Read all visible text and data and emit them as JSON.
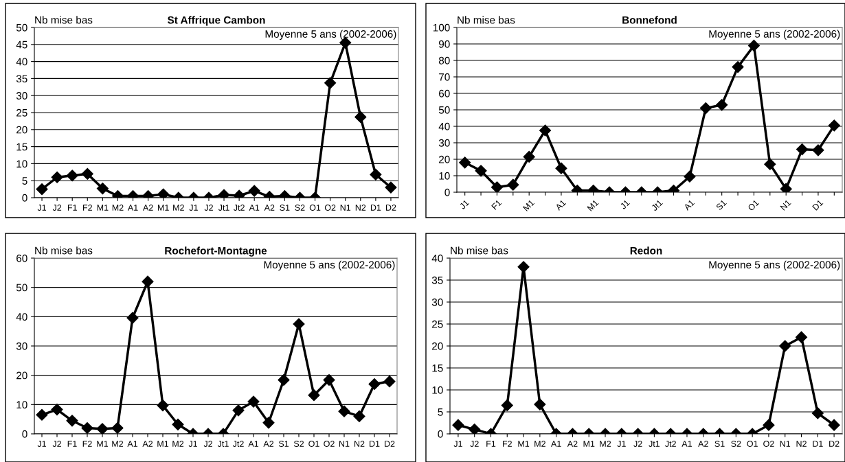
{
  "chart_data": [
    {
      "type": "line",
      "title": "St Affrique Cambon",
      "ylabel": "Nb mise bas",
      "annotations": [
        "Moyenne 5 ans (2002-2006)"
      ],
      "categories": [
        "J1",
        "J2",
        "F1",
        "F2",
        "M1",
        "M2",
        "A1",
        "A2",
        "M1",
        "M2",
        "J1",
        "J2",
        "Jt1",
        "Jt2",
        "A1",
        "A2",
        "S1",
        "S2",
        "O1",
        "O2",
        "N1",
        "N2",
        "D1",
        "D2"
      ],
      "color": "#000000",
      "values": [
        2.5,
        6,
        6.5,
        7,
        2.7,
        0.5,
        0.5,
        0.5,
        1,
        0,
        0,
        0,
        0.8,
        0.6,
        2,
        0.3,
        0.5,
        0,
        0,
        33.7,
        45.5,
        23.7,
        6.8,
        3
      ],
      "ylim": [
        0,
        50
      ],
      "yticks": [
        0,
        5,
        10,
        15,
        20,
        25,
        30,
        35,
        40,
        45,
        50
      ],
      "grid": "y",
      "marker": "diamond",
      "line_style": "solid"
    },
    {
      "type": "line",
      "title": "Bonnefond",
      "ylabel": "Nb mise bas",
      "annotations": [
        "Moyenne 5 ans (2002-2006)"
      ],
      "categories": [
        "J1",
        null,
        "F1",
        null,
        "M1",
        null,
        "A1",
        null,
        "M1",
        null,
        "J1",
        null,
        "Jt1",
        null,
        "A1",
        null,
        "S1",
        null,
        "O1",
        null,
        "N1",
        null,
        "D1",
        null
      ],
      "color": "#000000",
      "values": [
        18,
        13,
        3,
        4.5,
        21.5,
        37.5,
        14.5,
        1,
        1,
        0,
        0,
        0,
        0,
        1,
        9.5,
        51,
        53,
        76,
        89,
        17,
        2,
        26,
        25.5,
        40.5
      ],
      "ylim": [
        0,
        100
      ],
      "yticks": [
        0,
        10,
        20,
        30,
        40,
        50,
        60,
        70,
        80,
        90,
        100
      ],
      "grid": "y",
      "marker": "diamond",
      "line_style": "solid"
    },
    {
      "type": "line",
      "title": "Rochefort-Montagne",
      "ylabel": "Nb mise bas",
      "annotations": [
        "Moyenne 5 ans (2002-2006)"
      ],
      "categories": [
        "J1",
        "J2",
        "F1",
        "F2",
        "M1",
        "M2",
        "A1",
        "A2",
        "M1",
        "M2",
        "J1",
        "J2",
        "Jt1",
        "Jt2",
        "A1",
        "A2",
        "S1",
        "S2",
        "O1",
        "O2",
        "N1",
        "N2",
        "D1",
        "D2"
      ],
      "color": "#000000",
      "values": [
        6.5,
        8.3,
        4.5,
        2,
        1.7,
        2,
        39.6,
        52,
        9.7,
        3.2,
        0,
        0,
        0,
        8,
        11,
        3.8,
        18.4,
        37.5,
        13.2,
        18.4,
        7.7,
        6,
        17,
        17.9
      ],
      "ylim": [
        0,
        60
      ],
      "yticks": [
        0,
        10,
        20,
        30,
        40,
        50,
        60
      ],
      "grid": "y",
      "marker": "diamond",
      "line_style": "solid"
    },
    {
      "type": "line",
      "title": "Redon",
      "ylabel": "Nb mise bas",
      "annotations": [
        "Moyenne 5 ans (2002-2006)"
      ],
      "categories": [
        "J1",
        "J2",
        "F1",
        "F2",
        "M1",
        "M2",
        "A1",
        "A2",
        "M1",
        "M2",
        "J1",
        "J2",
        "Jt1",
        "Jt2",
        "A1",
        "A2",
        "S1",
        "S2",
        "O1",
        "O2",
        "N1",
        "N2",
        "D1",
        "D2"
      ],
      "color": "#000000",
      "values": [
        2,
        1,
        0,
        6.5,
        38,
        6.7,
        0,
        0,
        0,
        0,
        0,
        0,
        0,
        0,
        0,
        0,
        0,
        0,
        0,
        2,
        20,
        22,
        4.7,
        2
      ],
      "ylim": [
        0,
        40
      ],
      "yticks": [
        0,
        5,
        10,
        15,
        20,
        25,
        30,
        35,
        40
      ],
      "grid": "y",
      "marker": "diamond",
      "line_style": "solid"
    }
  ]
}
